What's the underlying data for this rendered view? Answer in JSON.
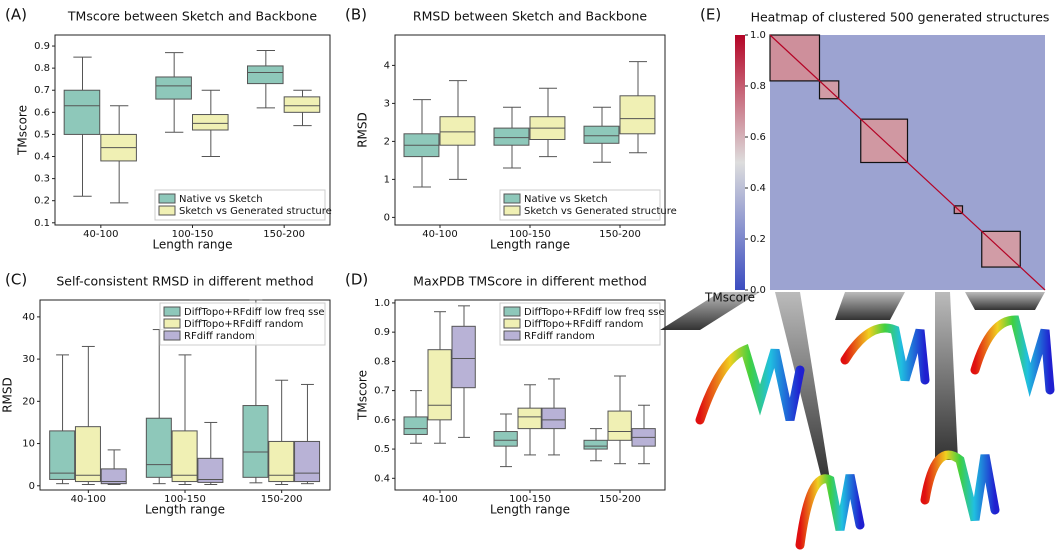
{
  "chart_data": [
    {
      "type": "box",
      "panel_label": "(A)",
      "title": "TMscore between Sketch and Backbone",
      "x_label": "Length range",
      "y_label": "TMscore",
      "categories": [
        "40-100",
        "100-150",
        "150-200"
      ],
      "ylim": [
        0.09,
        0.95
      ],
      "yticks": [
        0.1,
        0.2,
        0.3,
        0.4,
        0.5,
        0.6,
        0.7,
        0.8,
        0.9
      ],
      "legend": "lower right",
      "series": [
        {
          "name": "Native vs Sketch",
          "color": "#8ec8ba",
          "values": [
            {
              "low": 0.22,
              "q1": 0.5,
              "median": 0.63,
              "q3": 0.7,
              "high": 0.85
            },
            {
              "low": 0.51,
              "q1": 0.66,
              "median": 0.72,
              "q3": 0.76,
              "high": 0.87
            },
            {
              "low": 0.62,
              "q1": 0.73,
              "median": 0.78,
              "q3": 0.81,
              "high": 0.88
            }
          ]
        },
        {
          "name": "Sketch vs Generated structure",
          "color": "#f0f0b4",
          "values": [
            {
              "low": 0.19,
              "q1": 0.38,
              "median": 0.44,
              "q3": 0.5,
              "high": 0.63
            },
            {
              "low": 0.4,
              "q1": 0.52,
              "median": 0.55,
              "q3": 0.59,
              "high": 0.7
            },
            {
              "low": 0.54,
              "q1": 0.6,
              "median": 0.63,
              "q3": 0.67,
              "high": 0.7
            }
          ]
        }
      ]
    },
    {
      "type": "box",
      "panel_label": "(B)",
      "title": "RMSD between Sketch and Backbone",
      "x_label": "Length range",
      "y_label": "RMSD",
      "categories": [
        "40-100",
        "100-150",
        "150-200"
      ],
      "ylim": [
        -0.2,
        4.8
      ],
      "yticks": [
        0,
        1,
        2,
        3,
        4
      ],
      "legend": "lower right",
      "series": [
        {
          "name": "Native vs Sketch",
          "color": "#8ec8ba",
          "values": [
            {
              "low": 0.8,
              "q1": 1.6,
              "median": 1.9,
              "q3": 2.2,
              "high": 3.1
            },
            {
              "low": 1.3,
              "q1": 1.9,
              "median": 2.1,
              "q3": 2.35,
              "high": 2.9
            },
            {
              "low": 1.45,
              "q1": 1.95,
              "median": 2.15,
              "q3": 2.4,
              "high": 2.9
            }
          ]
        },
        {
          "name": "Sketch vs Generated structure",
          "color": "#f0f0b4",
          "values": [
            {
              "low": 1.0,
              "q1": 1.9,
              "median": 2.25,
              "q3": 2.65,
              "high": 3.6
            },
            {
              "low": 1.6,
              "q1": 2.05,
              "median": 2.35,
              "q3": 2.65,
              "high": 3.4
            },
            {
              "low": 1.7,
              "q1": 2.2,
              "median": 2.6,
              "q3": 3.2,
              "high": 4.1
            }
          ]
        }
      ]
    },
    {
      "type": "box",
      "panel_label": "(C)",
      "title": "Self-consistent RMSD in different method",
      "x_label": "Length range",
      "y_label": "RMSD",
      "categories": [
        "40-100",
        "100-150",
        "150-200"
      ],
      "ylim": [
        -1,
        44
      ],
      "yticks": [
        0,
        10,
        20,
        30,
        40
      ],
      "legend": "upper right",
      "series": [
        {
          "name": "DiffTopo+RFdiff low freq sse",
          "color": "#8ec8ba",
          "values": [
            {
              "low": 0.5,
              "q1": 1.5,
              "median": 3,
              "q3": 13,
              "high": 31
            },
            {
              "low": 0.5,
              "q1": 2,
              "median": 5,
              "q3": 16,
              "high": 37
            },
            {
              "low": 0.7,
              "q1": 2,
              "median": 8,
              "q3": 19,
              "high": 44
            }
          ]
        },
        {
          "name": "DiffTopo+RFdiff random",
          "color": "#f0f0b4",
          "values": [
            {
              "low": 0.3,
              "q1": 1,
              "median": 2.5,
              "q3": 14,
              "high": 33
            },
            {
              "low": 0.3,
              "q1": 1,
              "median": 2.5,
              "q3": 13,
              "high": 31
            },
            {
              "low": 0.3,
              "q1": 1,
              "median": 2.5,
              "q3": 10.5,
              "high": 25
            }
          ]
        },
        {
          "name": "RFdiff random",
          "color": "#b8b2d6",
          "values": [
            {
              "low": 0.3,
              "q1": 0.5,
              "median": 1,
              "q3": 4,
              "high": 8.5
            },
            {
              "low": 0.3,
              "q1": 0.8,
              "median": 1.5,
              "q3": 6.5,
              "high": 15
            },
            {
              "low": 0.5,
              "q1": 1,
              "median": 3,
              "q3": 10.5,
              "high": 24
            }
          ]
        }
      ]
    },
    {
      "type": "box",
      "panel_label": "(D)",
      "title": "MaxPDB TMScore in different method",
      "x_label": "Length range",
      "y_label": "TMscore",
      "categories": [
        "40-100",
        "100-150",
        "150-200"
      ],
      "ylim": [
        0.36,
        1.01
      ],
      "yticks": [
        0.4,
        0.5,
        0.6,
        0.7,
        0.8,
        0.9,
        {
          "value": 1,
          "label": "1.0"
        }
      ],
      "legend": "upper right",
      "series": [
        {
          "name": "DiffTopo+RFdiff low freq sse",
          "color": "#8ec8ba",
          "values": [
            {
              "low": 0.52,
              "q1": 0.55,
              "median": 0.57,
              "q3": 0.61,
              "high": 0.7
            },
            {
              "low": 0.44,
              "q1": 0.51,
              "median": 0.53,
              "q3": 0.56,
              "high": 0.62
            },
            {
              "low": 0.46,
              "q1": 0.5,
              "median": 0.51,
              "q3": 0.53,
              "high": 0.57
            }
          ]
        },
        {
          "name": "DiffTopo+RFdiff random",
          "color": "#f0f0b4",
          "values": [
            {
              "low": 0.52,
              "q1": 0.6,
              "median": 0.65,
              "q3": 0.84,
              "high": 0.97
            },
            {
              "low": 0.48,
              "q1": 0.57,
              "median": 0.61,
              "q3": 0.64,
              "high": 0.72
            },
            {
              "low": 0.45,
              "q1": 0.53,
              "median": 0.56,
              "q3": 0.63,
              "high": 0.75
            }
          ]
        },
        {
          "name": "RFdiff random",
          "color": "#b8b2d6",
          "values": [
            {
              "low": 0.54,
              "q1": 0.71,
              "median": 0.81,
              "q3": 0.92,
              "high": 0.99
            },
            {
              "low": 0.48,
              "q1": 0.57,
              "median": 0.6,
              "q3": 0.64,
              "high": 0.74
            },
            {
              "low": 0.45,
              "q1": 0.51,
              "median": 0.54,
              "q3": 0.57,
              "high": 0.65
            }
          ]
        }
      ]
    },
    {
      "type": "heatmap",
      "panel_label": "(E)",
      "title": "Heatmap of clustered 500 generated structures",
      "colorbar_label": "TMscore",
      "n": 500,
      "background": 0.3,
      "diagonal": 1,
      "clim": [
        0,
        1
      ],
      "cticks": [
        {
          "value": 0,
          "label": "0.0"
        },
        0.2,
        0.4,
        0.6,
        0.8,
        {
          "value": 1,
          "label": "1.0"
        }
      ],
      "clusters": [
        {
          "start": 0,
          "end": 90,
          "value": 0.68
        },
        {
          "start": 90,
          "end": 125,
          "value": 0.65
        },
        {
          "start": 165,
          "end": 250,
          "value": 0.66
        },
        {
          "start": 335,
          "end": 350,
          "value": 0.7
        },
        {
          "start": 385,
          "end": 455,
          "value": 0.65
        }
      ]
    }
  ]
}
